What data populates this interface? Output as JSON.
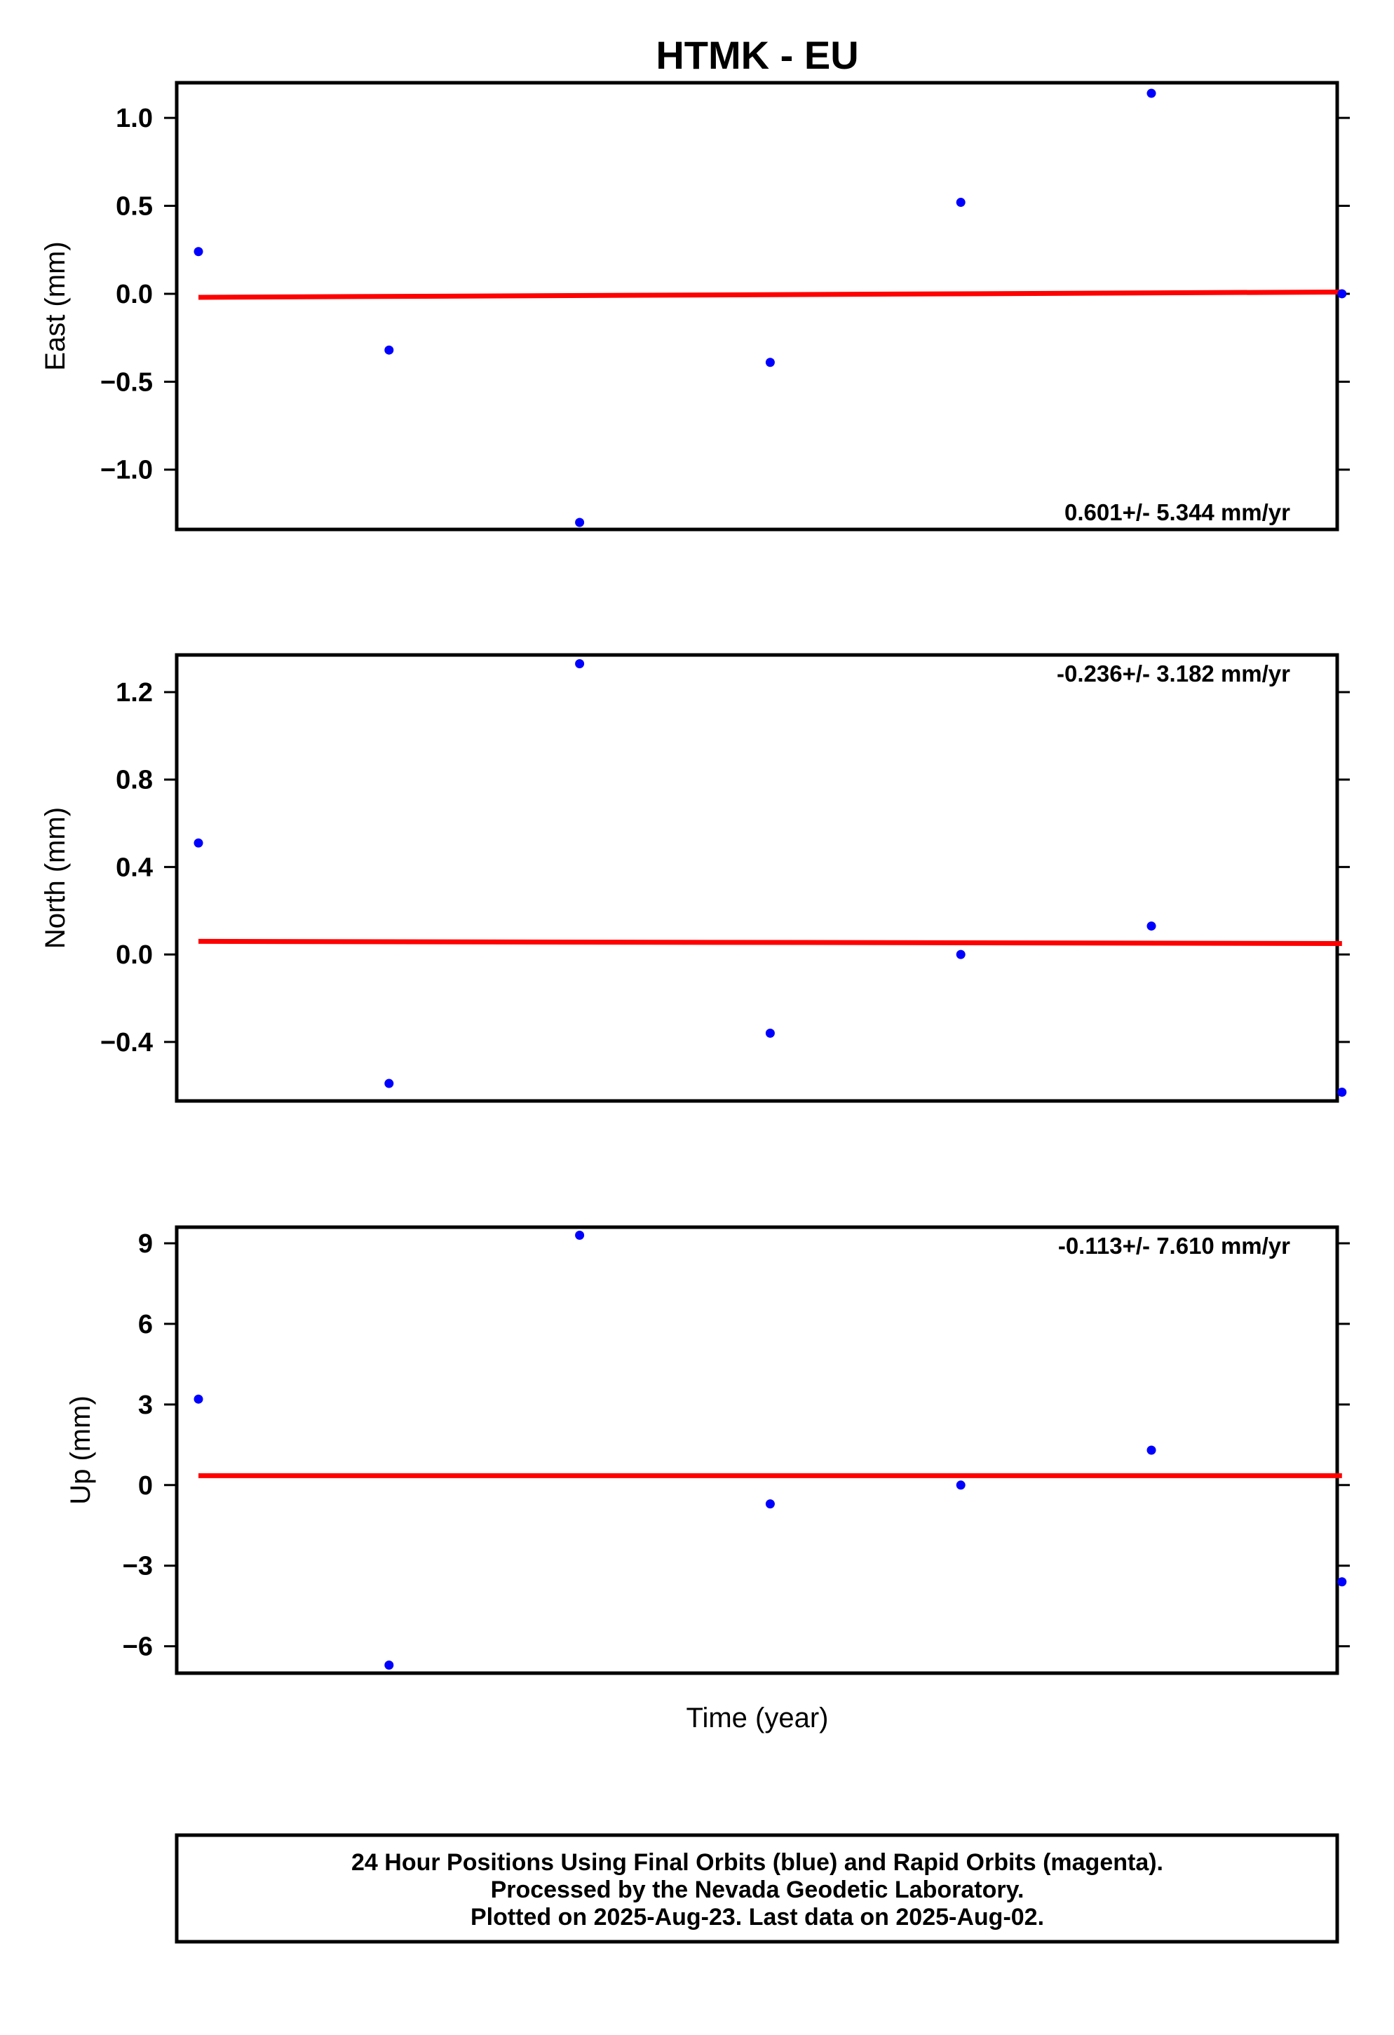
{
  "title": "HTMK - EU",
  "xlabel": "Time (year)",
  "footer": [
    "24 Hour Positions Using Final Orbits (blue) and Rapid Orbits (magenta).",
    "Processed by the Nevada Geodetic Laboratory.",
    "Plotted on 2025-Aug-23. Last data on 2025-Aug-02."
  ],
  "colors": {
    "points": "#0000ff",
    "trend": "#ff0000",
    "axis": "#000000"
  },
  "chart_data": [
    {
      "type": "scatter",
      "ylabel": "East (mm)",
      "rate_label": "0.601+/- 5.344 mm/yr",
      "ylim": [
        -1.34,
        1.2
      ],
      "yticks": [
        1.0,
        0.5,
        0.0,
        -0.5,
        -1.0
      ],
      "ytick_labels": [
        "1.0",
        "0.5",
        "0.0",
        "−0.5",
        "−1.0"
      ],
      "x": [
        0,
        1,
        2,
        3,
        4,
        5,
        6
      ],
      "y": [
        0.24,
        -0.32,
        -1.3,
        -0.39,
        0.52,
        1.14,
        0.0
      ],
      "trend": [
        -0.02,
        0.01
      ]
    },
    {
      "type": "scatter",
      "ylabel": "North (mm)",
      "rate_label": "-0.236+/- 3.182 mm/yr",
      "ylim": [
        -0.67,
        1.37
      ],
      "yticks": [
        1.2,
        0.8,
        0.4,
        0.0,
        -0.4
      ],
      "ytick_labels": [
        "1.2",
        "0.8",
        "0.4",
        "0.0",
        "−0.4"
      ],
      "x": [
        0,
        1,
        2,
        3,
        4,
        5,
        6
      ],
      "y": [
        0.51,
        -0.59,
        1.33,
        -0.36,
        0.0,
        0.13,
        -0.63
      ],
      "trend": [
        0.06,
        0.05
      ]
    },
    {
      "type": "scatter",
      "ylabel": "Up (mm)",
      "rate_label": "-0.113+/- 7.610 mm/yr",
      "ylim": [
        -7.0,
        9.6
      ],
      "yticks": [
        9,
        6,
        3,
        0,
        -3,
        -6
      ],
      "ytick_labels": [
        "9",
        "6",
        "3",
        "0",
        "−3",
        "−6"
      ],
      "x": [
        0,
        1,
        2,
        3,
        4,
        5,
        6
      ],
      "y": [
        3.2,
        -6.7,
        9.3,
        -0.7,
        0.0,
        1.3,
        -3.6
      ],
      "trend": [
        0.35,
        0.35
      ]
    }
  ]
}
